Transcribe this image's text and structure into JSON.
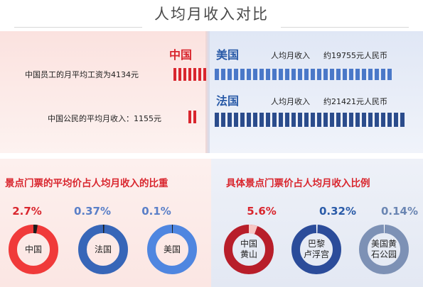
{
  "title": "人均月收入对比",
  "china": {
    "name": "中国",
    "employee_wage": "中国员工的月平均工资为4134元",
    "citizen_income": "中国公民的平均月收入：1155元"
  },
  "usa": {
    "name": "美国",
    "income_label": "人均月收入",
    "income_value": "约19755元人民币"
  },
  "france": {
    "name": "法国",
    "income_label": "人均月收入",
    "income_value": "约21421元人民币"
  },
  "left_section": {
    "heading": "景点门票的平均价占人均月收入的比重",
    "items": [
      {
        "name": "中国",
        "percent": "2.7%",
        "fraction": 0.027,
        "color": "#f03a3a"
      },
      {
        "name": "法国",
        "percent": "0.37%",
        "fraction": 0.0037,
        "color": "#3766b8"
      },
      {
        "name": "美国",
        "percent": "0.1%",
        "fraction": 0.001,
        "color": "#4f86e0"
      }
    ]
  },
  "right_section": {
    "heading": "具体景点门票价占人均月收入比例",
    "items": [
      {
        "name_line1": "中国",
        "name_line2": "黄山",
        "percent": "5.6%",
        "fraction": 0.056,
        "color": "#b81e2a"
      },
      {
        "name_line1": "巴黎",
        "name_line2": "卢浮宫",
        "percent": "0.32%",
        "fraction": 0.0032,
        "color": "#2b4c9a"
      },
      {
        "name_line1": "美国黄",
        "name_line2": "石公园",
        "percent": "0.14%",
        "fraction": 0.0014,
        "color": "#7d91b5"
      }
    ]
  },
  "colors": {
    "red": "#d9262e",
    "blue": "#2a5ba8"
  }
}
